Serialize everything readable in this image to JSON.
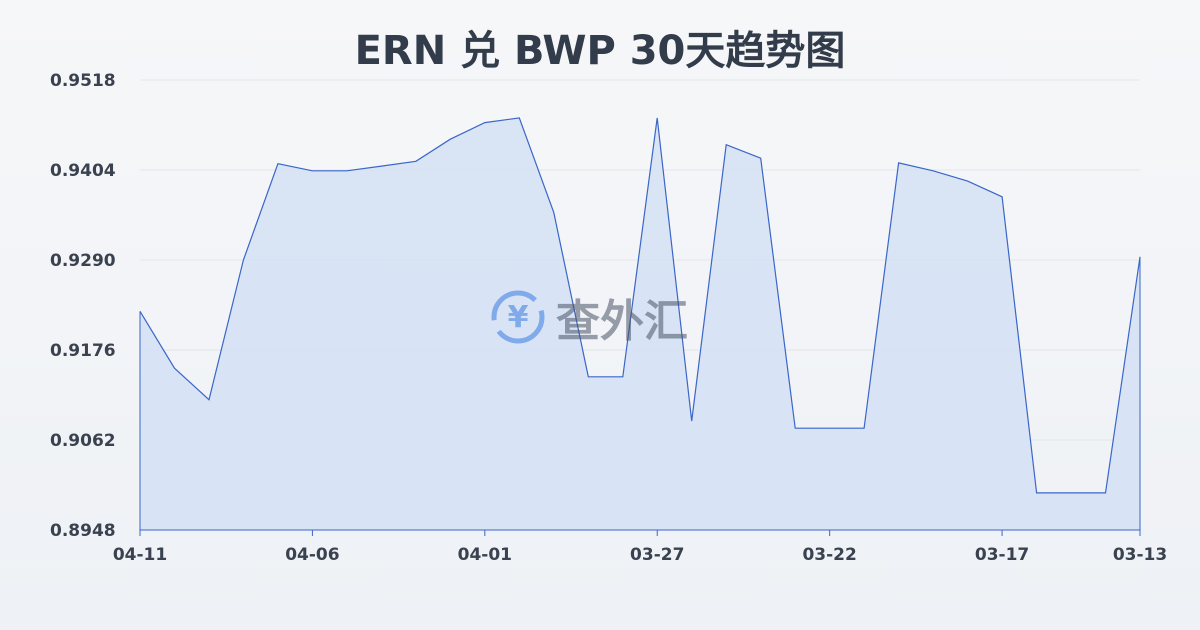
{
  "title": "ERN 兑 BWP 30天趋势图",
  "watermark": "查外汇",
  "chart_data": {
    "type": "area",
    "title": "ERN 兑 BWP 30天趋势图",
    "x": [
      "04-11",
      "04-10",
      "04-09",
      "04-08",
      "04-07",
      "04-06",
      "04-05",
      "04-04",
      "04-03",
      "04-02",
      "04-01",
      "03-31",
      "03-30",
      "03-29",
      "03-28",
      "03-27",
      "03-26",
      "03-25",
      "03-24",
      "03-23",
      "03-22",
      "03-21",
      "03-20",
      "03-19",
      "03-18",
      "03-17",
      "03-16",
      "03-15",
      "03-14",
      "03-13"
    ],
    "values": [
      0.9225,
      0.9153,
      0.9113,
      0.929,
      0.9412,
      0.9403,
      0.9403,
      0.9409,
      0.9415,
      0.9443,
      0.9464,
      0.947,
      0.935,
      0.9142,
      0.9142,
      0.947,
      0.9086,
      0.9436,
      0.9419,
      0.9077,
      0.9077,
      0.9077,
      0.9413,
      0.9403,
      0.939,
      0.937,
      0.8995,
      0.8995,
      0.8995,
      0.9294
    ],
    "x_ticks": [
      "04-11",
      "04-06",
      "04-01",
      "03-27",
      "03-22",
      "03-17",
      "03-13"
    ],
    "y_ticks": [
      "0.9518",
      "0.9404",
      "0.9290",
      "0.9176",
      "0.9062",
      "0.8948"
    ],
    "ylim": [
      0.8948,
      0.9518
    ],
    "grid": true,
    "colors": {
      "line": "#3a66c8",
      "fill": "#d4e0f5"
    }
  }
}
